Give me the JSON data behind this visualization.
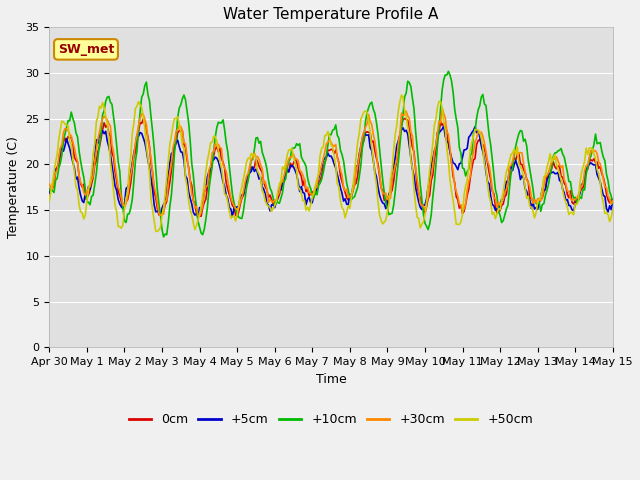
{
  "title": "Water Temperature Profile A",
  "xlabel": "Time",
  "ylabel": "Temperature (C)",
  "ylim": [
    0,
    35
  ],
  "yticks": [
    0,
    5,
    10,
    15,
    20,
    25,
    30,
    35
  ],
  "x_labels": [
    "Apr 30",
    "May 1",
    "May 2",
    "May 3",
    "May 4",
    "May 5",
    "May 6",
    "May 7",
    "May 8",
    "May 9",
    "May 10",
    "May 11",
    "May 12",
    "May 13",
    "May 14",
    "May 15"
  ],
  "legend_labels": [
    "0cm",
    "+5cm",
    "+10cm",
    "+30cm",
    "+50cm"
  ],
  "legend_colors": [
    "#dd0000",
    "#0000cc",
    "#00bb00",
    "#ff8800",
    "#cccc00"
  ],
  "annotation_text": "SW_met",
  "annotation_bg": "#ffff99",
  "annotation_border": "#cc8800",
  "annotation_text_color": "#990000",
  "line_colors": [
    "#dd0000",
    "#0000cc",
    "#00bb00",
    "#ff8800",
    "#cccc00"
  ],
  "line_width": 1.2,
  "n_days": 15,
  "title_fontsize": 11,
  "axis_label_fontsize": 9,
  "tick_fontsize": 8,
  "legend_fontsize": 9
}
